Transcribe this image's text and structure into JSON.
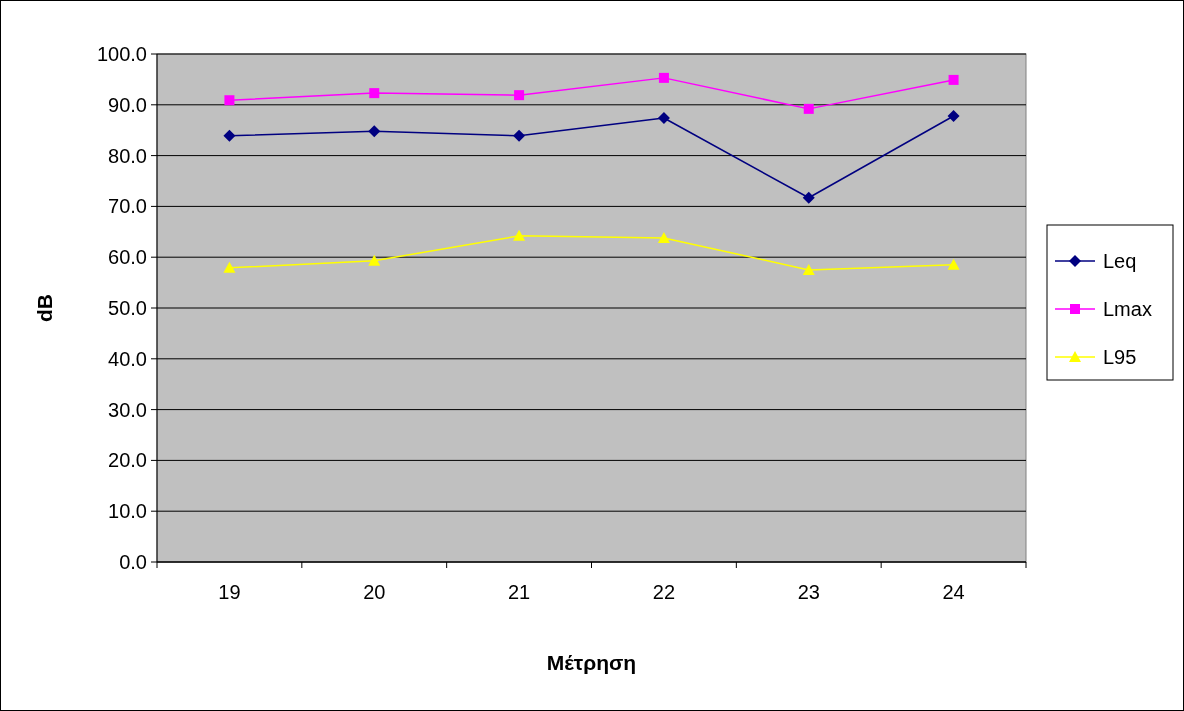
{
  "chart_data": {
    "type": "line",
    "xlabel": "Μέτρηση",
    "ylabel": "dB",
    "categories": [
      "19",
      "20",
      "21",
      "22",
      "23",
      "24"
    ],
    "series": [
      {
        "name": "Leq",
        "color": "#000080",
        "marker": "diamond",
        "values": [
          83.9,
          84.8,
          83.9,
          87.4,
          71.7,
          87.8
        ]
      },
      {
        "name": "Lmax",
        "color": "#ff00ff",
        "marker": "square",
        "values": [
          90.9,
          92.3,
          91.9,
          95.3,
          89.2,
          94.9
        ]
      },
      {
        "name": "L95",
        "color": "#ffff00",
        "marker": "triangle",
        "values": [
          57.9,
          59.3,
          64.2,
          63.8,
          57.5,
          58.5
        ]
      }
    ],
    "ylim": [
      0,
      100
    ],
    "yticks": [
      {
        "value": 0,
        "label": "0.0"
      },
      {
        "value": 10,
        "label": "10.0"
      },
      {
        "value": 20,
        "label": "20.0"
      },
      {
        "value": 30,
        "label": "30.0"
      },
      {
        "value": 40,
        "label": "40.0"
      },
      {
        "value": 50,
        "label": "50.0"
      },
      {
        "value": 60,
        "label": "60.0"
      },
      {
        "value": 70,
        "label": "70.0"
      },
      {
        "value": 80,
        "label": "80.0"
      },
      {
        "value": 90,
        "label": "90.0"
      },
      {
        "value": 100,
        "label": "100.0"
      }
    ],
    "grid": "y",
    "legend": "right",
    "line_style": "solid"
  }
}
